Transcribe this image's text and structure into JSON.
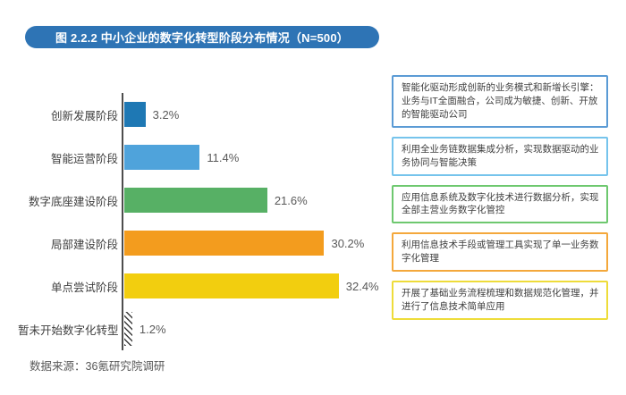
{
  "figure": {
    "title": "图 2.2.2 中小企业的数字化转型阶段分布情况（N=500）",
    "title_bg": "#2E74B5",
    "title_text_color": "#FFFFFF",
    "source": "数据来源：36氪研究院调研"
  },
  "chart_data": {
    "type": "bar",
    "orientation": "horizontal",
    "title": "图 2.2.2 中小企业的数字化转型阶段分布情况（N=500）",
    "sample_size": "N=500",
    "xlabel": "",
    "ylabel": "",
    "xlim": [
      0,
      35
    ],
    "grid": false,
    "legend_position": "none",
    "categories": [
      "创新发展阶段",
      "智能运营阶段",
      "数字底座建设阶段",
      "局部建设阶段",
      "单点尝试阶段",
      "暂未开始数字化转型"
    ],
    "values": [
      3.2,
      11.4,
      21.6,
      30.2,
      32.4,
      1.2
    ],
    "value_labels": [
      "3.2%",
      "11.4%",
      "21.6%",
      "30.2%",
      "32.4%",
      "1.2%"
    ],
    "bar_colors": [
      "#1E78B4",
      "#4FA3DB",
      "#57B065",
      "#F39C1E",
      "#F2CE0F",
      "#000000"
    ],
    "bar_patterns": [
      "solid",
      "solid",
      "solid",
      "solid",
      "solid",
      "hatch"
    ]
  },
  "annotations": [
    {
      "text": "智能化驱动形成创新的业务模式和新增长引擎：业务与IT全面融合，公司成为敏捷、创新、开放的智能驱动公司",
      "border_color": "#5B9BD5"
    },
    {
      "text": "利用全业务链数据集成分析，实现数据驱动的业务协同与智能决策",
      "border_color": "#76C4EC"
    },
    {
      "text": "应用信息系统及数字化技术进行数据分析，实现全部主营业务数字化管控",
      "border_color": "#6EC86F"
    },
    {
      "text": "利用信息技术手段或管理工具实现了单一业务数字化管理",
      "border_color": "#F4A83C"
    },
    {
      "text": "开展了基础业务流程梳理和数据规范化管理，并进行了信息技术简单应用",
      "border_color": "#EEDC3A"
    }
  ]
}
